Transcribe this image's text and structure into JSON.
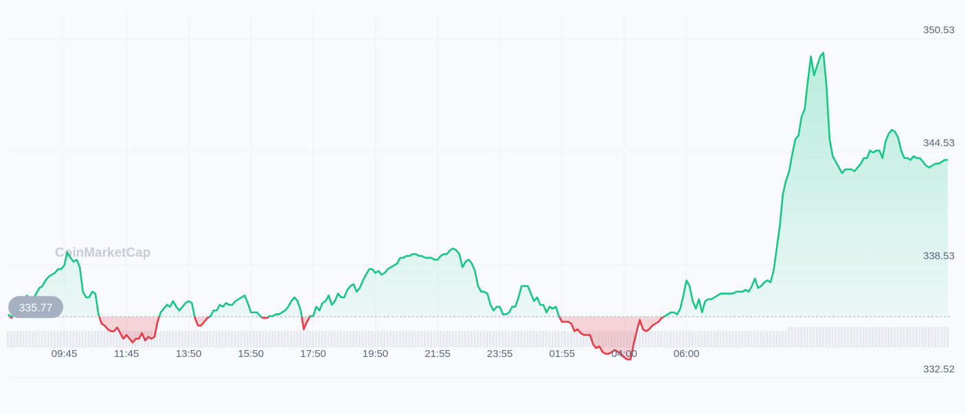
{
  "watermark": "CoinMarketCap",
  "chart_data": {
    "type": "area",
    "reference_price": 335.77,
    "reference_label": "335.77",
    "ylim": [
      330.6,
      352.6
    ],
    "y_ticks": [
      350.53,
      344.53,
      338.53,
      332.52
    ],
    "y_tick_labels": [
      "350.53",
      "344.53",
      "338.53",
      "332.52"
    ],
    "x_ticks": [
      "09:45",
      "11:45",
      "13:50",
      "15:50",
      "17:50",
      "19:50",
      "21:55",
      "23:55",
      "01:55",
      "04:00",
      "06:00"
    ],
    "x_tick_index": [
      18,
      38,
      58,
      78,
      98,
      118,
      138,
      158,
      178,
      198,
      218
    ],
    "colors": {
      "up": "#16c784",
      "down": "#ea3943",
      "reference": "#a6b0c3",
      "badge": "#a6b0c3"
    },
    "grid": true,
    "volume_bars": true,
    "series": [
      {
        "values": [
          335.9,
          335.7,
          336.1,
          336.3,
          336.8,
          336.7,
          336.9,
          336.5,
          336.7,
          337.0,
          337.3,
          337.4,
          337.7,
          337.9,
          338.0,
          338.1,
          338.3,
          338.3,
          338.5,
          339.2,
          338.9,
          338.7,
          338.8,
          338.4,
          337.1,
          336.8,
          336.8,
          337.1,
          337.0,
          335.9,
          335.4,
          335.3,
          335.1,
          335.0,
          335.0,
          335.2,
          334.9,
          334.6,
          334.8,
          334.6,
          334.4,
          334.6,
          334.6,
          334.9,
          334.5,
          334.7,
          334.6,
          334.7,
          335.5,
          336.0,
          336.2,
          336.4,
          336.3,
          336.6,
          336.3,
          336.1,
          336.3,
          336.5,
          336.6,
          336.5,
          335.7,
          335.3,
          335.3,
          335.5,
          335.7,
          335.8,
          336.1,
          336.1,
          336.4,
          336.3,
          336.5,
          336.4,
          336.4,
          336.6,
          336.7,
          336.8,
          336.9,
          336.5,
          336.0,
          336.0,
          336.0,
          335.8,
          335.7,
          335.7,
          335.8,
          335.8,
          335.9,
          335.9,
          336.0,
          336.1,
          336.3,
          336.6,
          336.8,
          336.6,
          336.1,
          335.1,
          335.5,
          335.8,
          335.8,
          336.3,
          336.1,
          336.5,
          336.6,
          336.9,
          336.4,
          336.6,
          337.0,
          336.8,
          336.8,
          337.2,
          337.4,
          337.5,
          337.1,
          337.3,
          337.7,
          338.0,
          338.3,
          338.3,
          338.1,
          338.2,
          338.0,
          338.1,
          338.3,
          338.4,
          338.5,
          338.6,
          338.9,
          338.9,
          339.0,
          339.0,
          339.1,
          339.1,
          339.0,
          339.0,
          338.9,
          338.9,
          338.9,
          338.8,
          338.8,
          339.0,
          339.1,
          339.1,
          339.3,
          339.4,
          339.3,
          339.1,
          338.4,
          338.7,
          338.8,
          338.6,
          338.2,
          337.4,
          337.1,
          337.1,
          337.0,
          336.4,
          336.1,
          336.3,
          336.3,
          335.9,
          335.9,
          336.0,
          336.3,
          336.3,
          336.8,
          337.4,
          337.4,
          337.4,
          337.0,
          336.6,
          336.8,
          336.4,
          336.4,
          336.0,
          336.3,
          336.2,
          336.3,
          335.8,
          335.5,
          335.5,
          335.5,
          335.4,
          335.0,
          335.1,
          334.9,
          334.8,
          334.8,
          334.8,
          334.3,
          334.1,
          334.2,
          333.9,
          333.8,
          333.8,
          333.9,
          334.0,
          333.9,
          333.8,
          333.6,
          333.5,
          333.5,
          334.3,
          335.0,
          335.6,
          335.1,
          335.0,
          335.1,
          335.3,
          335.4,
          335.5,
          335.7,
          335.8,
          335.9,
          336.0,
          336.0,
          335.9,
          336.2,
          336.9,
          337.7,
          337.4,
          336.6,
          336.2,
          336.7,
          336.0,
          336.6,
          336.7,
          336.7,
          336.8,
          336.9,
          337.0,
          337.0,
          337.0,
          337.0,
          337.0,
          337.1,
          337.1,
          337.1,
          337.2,
          337.1,
          337.4,
          337.8,
          337.3,
          337.4,
          337.6,
          337.7,
          337.6,
          338.2,
          339.4,
          340.6,
          342.3,
          343.0,
          343.5,
          344.4,
          345.2,
          345.4,
          346.4,
          346.8,
          348.3,
          349.6,
          348.6,
          349.1,
          349.6,
          349.8,
          348.0,
          345.2,
          344.3,
          344.0,
          343.7,
          343.4,
          343.6,
          343.6,
          343.6,
          343.5,
          343.7,
          343.9,
          344.2,
          344.2,
          344.6,
          344.5,
          344.6,
          344.6,
          344.2,
          345.1,
          345.5,
          345.7,
          345.6,
          345.3,
          344.6,
          344.2,
          344.2,
          344.1,
          344.3,
          344.2,
          344.2,
          344.0,
          343.8,
          343.7,
          343.8,
          343.9,
          343.9,
          344.0,
          344.1,
          344.1
        ]
      }
    ]
  }
}
